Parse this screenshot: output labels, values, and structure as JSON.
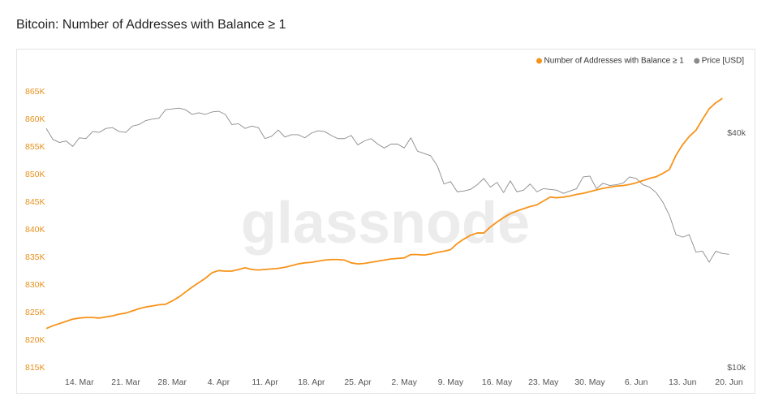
{
  "chart_data": {
    "type": "line",
    "title": "Bitcoin: Number of Addresses with Balance ≥ 1",
    "watermark": "glassnode",
    "legend": "top-right",
    "categories": [
      null,
      null,
      null,
      null,
      null,
      "14. Mar",
      null,
      null,
      null,
      null,
      null,
      null,
      "21. Mar",
      null,
      null,
      null,
      null,
      null,
      null,
      "28. Mar",
      null,
      null,
      null,
      null,
      null,
      null,
      "4. Apr",
      null,
      null,
      null,
      null,
      null,
      null,
      "11. Apr",
      null,
      null,
      null,
      null,
      null,
      null,
      "18. Apr",
      null,
      null,
      null,
      null,
      null,
      null,
      "25. Apr",
      null,
      null,
      null,
      null,
      null,
      null,
      "2. May",
      null,
      null,
      null,
      null,
      null,
      null,
      "9. May",
      null,
      null,
      null,
      null,
      null,
      null,
      "16. May",
      null,
      null,
      null,
      null,
      null,
      null,
      "23. May",
      null,
      null,
      null,
      null,
      null,
      null,
      "30. May",
      null,
      null,
      null,
      null,
      null,
      null,
      "6. Jun",
      null,
      null,
      null,
      null,
      null,
      null,
      "13. Jun",
      null,
      null,
      null,
      null,
      null,
      null,
      "20. Jun"
    ],
    "series": [
      {
        "name": "Number of Addresses with Balance ≥ 1",
        "color": "#f7931a",
        "axis": "y",
        "values": [
          822100,
          822600,
          823000,
          823400,
          823800,
          824000,
          824100,
          824100,
          824000,
          824200,
          824400,
          824700,
          824900,
          825300,
          825700,
          826000,
          826200,
          826400,
          826500,
          827100,
          827800,
          828700,
          829600,
          830400,
          831200,
          832200,
          832600,
          832500,
          832500,
          832800,
          833100,
          832800,
          832700,
          832800,
          832900,
          833000,
          833200,
          833500,
          833800,
          834000,
          834100,
          834300,
          834500,
          834600,
          834600,
          834500,
          834000,
          833800,
          833900,
          834100,
          834300,
          834500,
          834700,
          834800,
          834900,
          835500,
          835500,
          835400,
          835600,
          835900,
          836100,
          836400,
          837500,
          838300,
          839000,
          839400,
          839400,
          840500,
          841400,
          842200,
          842900,
          843400,
          843800,
          844200,
          844500,
          845200,
          845900,
          845800,
          845900,
          846100,
          846400,
          846600,
          846900,
          847200,
          847500,
          847700,
          847900,
          848000,
          848200,
          848500,
          848900,
          849300,
          849600,
          850200,
          850900,
          853500,
          855400,
          856900,
          858000,
          860000,
          861900,
          863000,
          863800,
          null
        ]
      },
      {
        "name": "Price [USD]",
        "color": "#8a8a8a",
        "axis": "y2",
        "values": [
          40600,
          39200,
          38800,
          39000,
          38300,
          39400,
          39300,
          40200,
          40100,
          40600,
          40700,
          40200,
          40100,
          40900,
          41100,
          41600,
          41800,
          41900,
          43000,
          43100,
          43200,
          43000,
          42400,
          42600,
          42400,
          42700,
          42800,
          42400,
          41100,
          41200,
          40600,
          40900,
          40700,
          39300,
          39600,
          40400,
          39500,
          39800,
          39800,
          39400,
          40000,
          40300,
          40200,
          39700,
          39300,
          39300,
          39700,
          38500,
          39000,
          39300,
          38600,
          38100,
          38600,
          38600,
          38100,
          39400,
          37700,
          37400,
          37100,
          35800,
          33500,
          33800,
          32500,
          32600,
          32800,
          33400,
          34200,
          33100,
          33700,
          32400,
          33900,
          32500,
          32700,
          33500,
          32500,
          32900,
          32800,
          32700,
          32300,
          32600,
          32900,
          34400,
          34500,
          32900,
          33600,
          33300,
          33400,
          33600,
          34400,
          34200,
          33400,
          33100,
          32400,
          31200,
          29500,
          27000,
          26700,
          27000,
          24800,
          24900,
          23500,
          24900,
          24600,
          24500
        ]
      }
    ],
    "ylim": [
      815000,
      866000
    ],
    "yticks": [
      {
        "value": 815000,
        "label": "815K"
      },
      {
        "value": 820000,
        "label": "820K"
      },
      {
        "value": 825000,
        "label": "825K"
      },
      {
        "value": 830000,
        "label": "830K"
      },
      {
        "value": 835000,
        "label": "835K"
      },
      {
        "value": 840000,
        "label": "840K"
      },
      {
        "value": 845000,
        "label": "845K"
      },
      {
        "value": 850000,
        "label": "850K"
      },
      {
        "value": 855000,
        "label": "855K"
      },
      {
        "value": 860000,
        "label": "860K"
      },
      {
        "value": 865000,
        "label": "865K"
      }
    ],
    "y2lim": [
      10000,
      46000
    ],
    "y2ticks": [
      {
        "value": 10000,
        "label": "$10k"
      },
      {
        "value": 40000,
        "label": "$40k"
      }
    ],
    "grid": false
  }
}
